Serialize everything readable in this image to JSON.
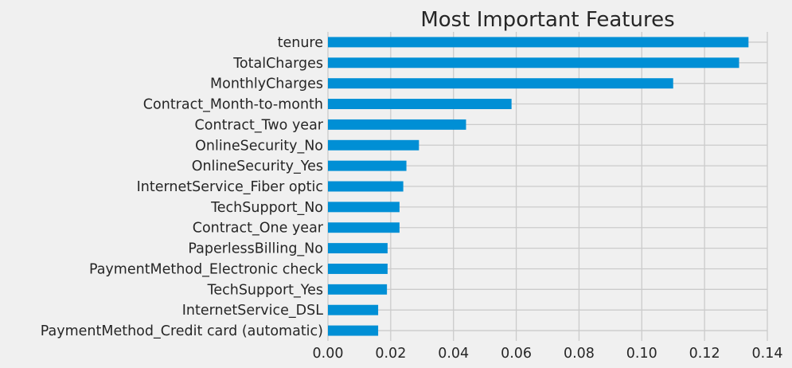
{
  "chart_data": {
    "type": "bar",
    "orientation": "horizontal",
    "title": "Most Important Features",
    "xlabel": "",
    "ylabel": "",
    "xlim": [
      0,
      0.14
    ],
    "grid": true,
    "color": "#008fd5",
    "x_ticks": [
      "0.00",
      "0.02",
      "0.04",
      "0.06",
      "0.08",
      "0.10",
      "0.12",
      "0.14"
    ],
    "x_tick_values": [
      0,
      0.02,
      0.04,
      0.06,
      0.08,
      0.1,
      0.12,
      0.14
    ],
    "categories": [
      "tenure",
      "TotalCharges",
      "MonthlyCharges",
      "Contract_Month-to-month",
      "Contract_Two year",
      "OnlineSecurity_No",
      "OnlineSecurity_Yes",
      "InternetService_Fiber optic",
      "TechSupport_No",
      "Contract_One year",
      "PaperlessBilling_No",
      "PaymentMethod_Electronic check",
      "TechSupport_Yes",
      "InternetService_DSL",
      "PaymentMethod_Credit card (automatic)"
    ],
    "values": [
      0.134,
      0.131,
      0.11,
      0.0585,
      0.044,
      0.029,
      0.025,
      0.024,
      0.0228,
      0.0228,
      0.019,
      0.019,
      0.0188,
      0.016,
      0.016
    ]
  }
}
